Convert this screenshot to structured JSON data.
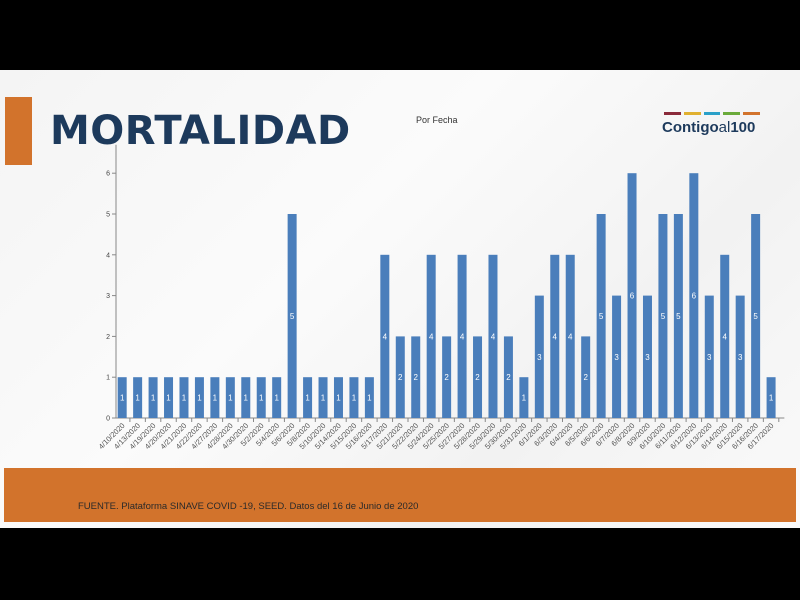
{
  "slide": {
    "title": "MORTALIDAD",
    "logo_text": "Contigo al 100",
    "logo_parts": [
      "Contigo",
      "al",
      "100"
    ],
    "footer": "FUENTE. Plataforma SINAVE COVID -19, SEED. Datos del 16 de Junio de 2020"
  },
  "colors": {
    "accent": "#d2732c",
    "title": "#1d3a5c",
    "bar": "#4a7ebb",
    "logo_stripes": [
      "#8a2a3a",
      "#e0b030",
      "#2aa0c8",
      "#6aaa3a",
      "#d2732c"
    ]
  },
  "chart_data": {
    "type": "bar",
    "title": "Por Fecha",
    "xlabel": "",
    "ylabel": "",
    "ylim": [
      0,
      6.5
    ],
    "yticks": [
      0,
      1,
      2,
      3,
      4,
      5,
      6
    ],
    "grid": false,
    "categories": [
      "4/10/2020",
      "4/13/2020",
      "4/19/2020",
      "4/20/2020",
      "4/21/2020",
      "4/22/2020",
      "4/27/2020",
      "4/28/2020",
      "4/30/2020",
      "5/2/2020",
      "5/4/2020",
      "5/6/2020",
      "5/8/2020",
      "5/10/2020",
      "5/14/2020",
      "5/15/2020",
      "5/16/2020",
      "5/17/2020",
      "5/21/2020",
      "5/22/2020",
      "5/24/2020",
      "5/25/2020",
      "5/27/2020",
      "5/28/2020",
      "5/29/2020",
      "5/30/2020",
      "5/31/2020",
      "6/1/2020",
      "6/3/2020",
      "6/4/2020",
      "6/5/2020",
      "6/6/2020",
      "6/7/2020",
      "6/8/2020",
      "6/9/2020",
      "6/10/2020",
      "6/11/2020",
      "6/12/2020",
      "6/13/2020",
      "6/14/2020",
      "6/15/2020",
      "6/16/2020",
      "6/17/2020"
    ],
    "values": [
      1,
      1,
      1,
      1,
      1,
      1,
      1,
      1,
      1,
      1,
      1,
      5,
      1,
      1,
      1,
      1,
      1,
      4,
      2,
      2,
      4,
      2,
      4,
      2,
      4,
      2,
      1,
      3,
      4,
      4,
      2,
      5,
      3,
      6,
      3,
      5,
      5,
      6,
      3,
      4,
      3,
      5,
      1
    ]
  }
}
